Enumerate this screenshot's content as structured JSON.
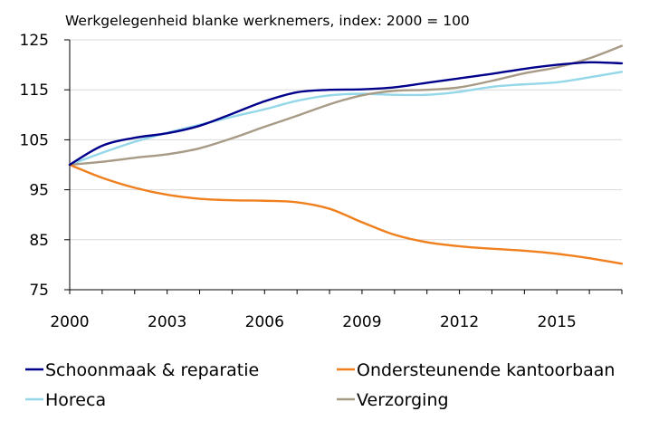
{
  "chart_data": {
    "type": "line",
    "title": "",
    "subtitle": "Werkgelegenheid blanke werknemers, index: 2000 = 100",
    "xlabel": "",
    "ylabel": "",
    "xlim": [
      2000,
      2017
    ],
    "ylim": [
      75,
      125
    ],
    "yticks": [
      75,
      85,
      95,
      105,
      115,
      125
    ],
    "xticks": [
      2000,
      2003,
      2006,
      2009,
      2012,
      2015
    ],
    "grid": "horizontal",
    "legend_position": "bottom",
    "x": [
      2000,
      2001,
      2002,
      2003,
      2004,
      2005,
      2006,
      2007,
      2008,
      2009,
      2010,
      2011,
      2012,
      2013,
      2014,
      2015,
      2016,
      2017
    ],
    "series": [
      {
        "name": "Schoonmaak & reparatie",
        "color": "#00008b",
        "values": [
          100,
          103.8,
          105.4,
          106.3,
          107.8,
          110.2,
          112.7,
          114.5,
          115.0,
          115.1,
          115.5,
          116.4,
          117.3,
          118.2,
          119.2,
          120.0,
          120.5,
          120.3
        ]
      },
      {
        "name": "Ondersteunende kantoorbaan",
        "color": "#f07f1d",
        "values": [
          100,
          97.4,
          95.4,
          94.0,
          93.2,
          92.9,
          92.8,
          92.5,
          91.2,
          88.5,
          86.0,
          84.5,
          83.7,
          83.2,
          82.8,
          82.2,
          81.3,
          80.2
        ]
      },
      {
        "name": "Horeca",
        "color": "#93d7e8",
        "values": [
          100,
          102.4,
          104.6,
          106.4,
          108.0,
          109.6,
          111.1,
          112.8,
          113.9,
          114.2,
          114.0,
          114.0,
          114.6,
          115.6,
          116.1,
          116.5,
          117.5,
          118.6
        ]
      },
      {
        "name": "Verzorging",
        "color": "#a89b86",
        "values": [
          100,
          100.6,
          101.4,
          102.1,
          103.3,
          105.3,
          107.6,
          109.8,
          112.1,
          113.9,
          114.8,
          115.0,
          115.5,
          116.8,
          118.3,
          119.5,
          121.3,
          123.8
        ]
      }
    ]
  }
}
